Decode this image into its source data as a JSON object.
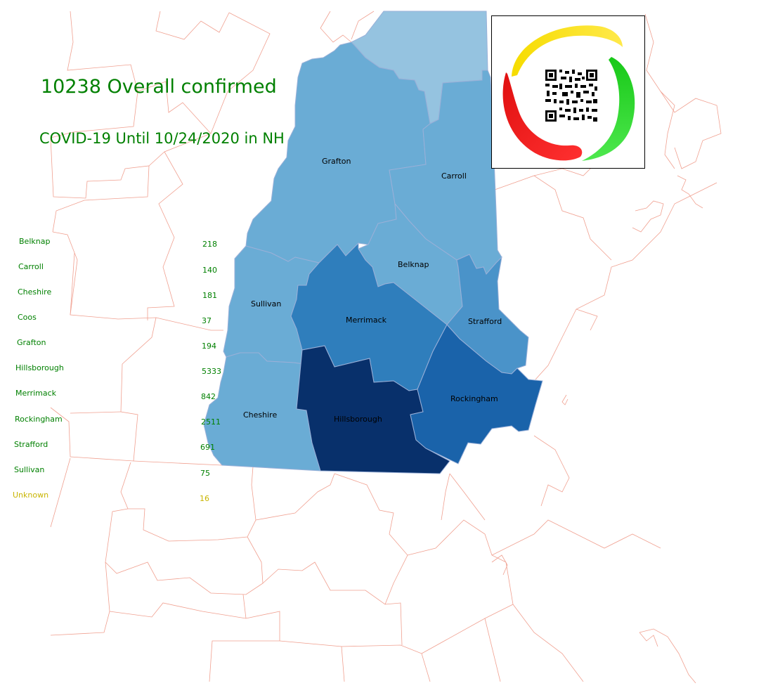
{
  "headline": "10238 Overall confirmed",
  "subtitle": "COVID-19 Until 10/24/2020 in NH",
  "colors": {
    "title_text": "#008000",
    "legend_text": "#008000",
    "unknown_text": "#c8b400",
    "background_borders": "#f0a090",
    "county_edge": "#9ab0d8",
    "scale": [
      "#c6dbef",
      "#6baed6",
      "#4292c6",
      "#2171b5",
      "#08306b"
    ]
  },
  "counties": [
    {
      "name": "Coos",
      "cases": 37,
      "color": "#95c3e0",
      "label_shown": false
    },
    {
      "name": "Grafton",
      "cases": 194,
      "color": "#6aacd5",
      "label_shown": true
    },
    {
      "name": "Carroll",
      "cases": 140,
      "color": "#6aacd5",
      "label_shown": true
    },
    {
      "name": "Belknap",
      "cases": 218,
      "color": "#6aacd5",
      "label_shown": true
    },
    {
      "name": "Sullivan",
      "cases": 75,
      "color": "#6aacd5",
      "label_shown": true
    },
    {
      "name": "Merrimack",
      "cases": 842,
      "color": "#2f7ebc",
      "label_shown": true
    },
    {
      "name": "Strafford",
      "cases": 691,
      "color": "#4a93c9",
      "label_shown": true
    },
    {
      "name": "Cheshire",
      "cases": 181,
      "color": "#6aacd5",
      "label_shown": true
    },
    {
      "name": "Hillsborough",
      "cases": 5333,
      "color": "#08306b",
      "label_shown": true
    },
    {
      "name": "Rockingham",
      "cases": 2511,
      "color": "#1a63aa",
      "label_shown": true
    }
  ],
  "legend": [
    {
      "name": "Belknap",
      "value": "218"
    },
    {
      "name": "Carroll",
      "value": "140"
    },
    {
      "name": "Cheshire",
      "value": "181"
    },
    {
      "name": "Coos",
      "value": "37"
    },
    {
      "name": "Grafton",
      "value": "194"
    },
    {
      "name": "Hillsborough",
      "value": "5333"
    },
    {
      "name": "Merrimack",
      "value": "842"
    },
    {
      "name": "Rockingham",
      "value": "2511"
    },
    {
      "name": "Strafford",
      "value": "691"
    },
    {
      "name": "Sullivan",
      "value": "75"
    },
    {
      "name": "Unknown",
      "value": "16"
    }
  ],
  "logo": {
    "icon": "qr-code-icon",
    "ring_colors": [
      "#f2d400",
      "#20d020",
      "#e81010"
    ]
  }
}
